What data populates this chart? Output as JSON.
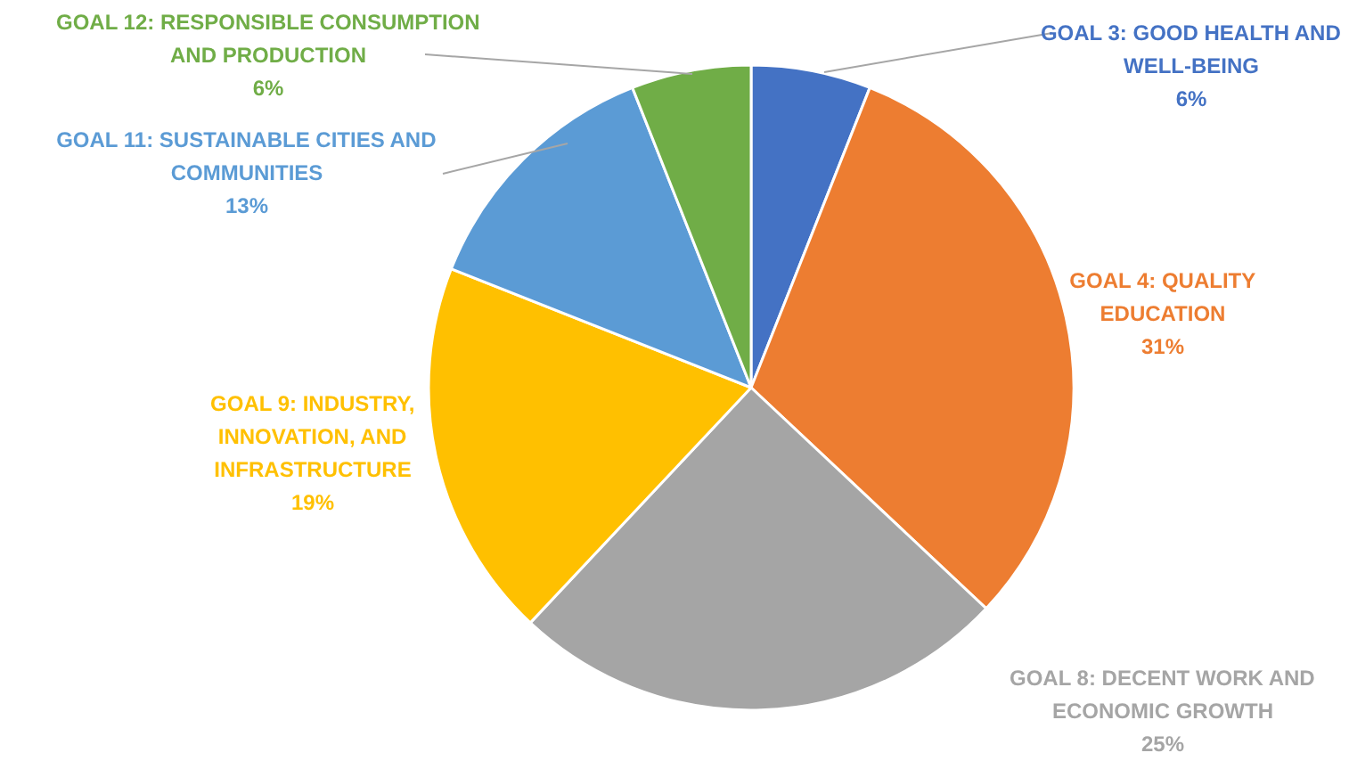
{
  "chart_data": {
    "type": "pie",
    "categories": [
      "GOAL 3: GOOD HEALTH AND WELL-BEING",
      "GOAL 4: QUALITY EDUCATION",
      "GOAL 8: DECENT WORK AND ECONOMIC GROWTH",
      "GOAL 9: INDUSTRY, INNOVATION, AND INFRASTRUCTURE",
      "GOAL 11: SUSTAINABLE CITIES AND COMMUNITIES",
      "GOAL 12: RESPONSIBLE CONSUMPTION AND PRODUCTION"
    ],
    "values": [
      6,
      31,
      25,
      19,
      13,
      6
    ],
    "colors": [
      "#4472c4",
      "#ed7d31",
      "#a5a5a5",
      "#ffc000",
      "#5b9bd5",
      "#70ad47"
    ],
    "value_labels": [
      "6%",
      "31%",
      "25%",
      "19%",
      "13%",
      "6%"
    ]
  }
}
